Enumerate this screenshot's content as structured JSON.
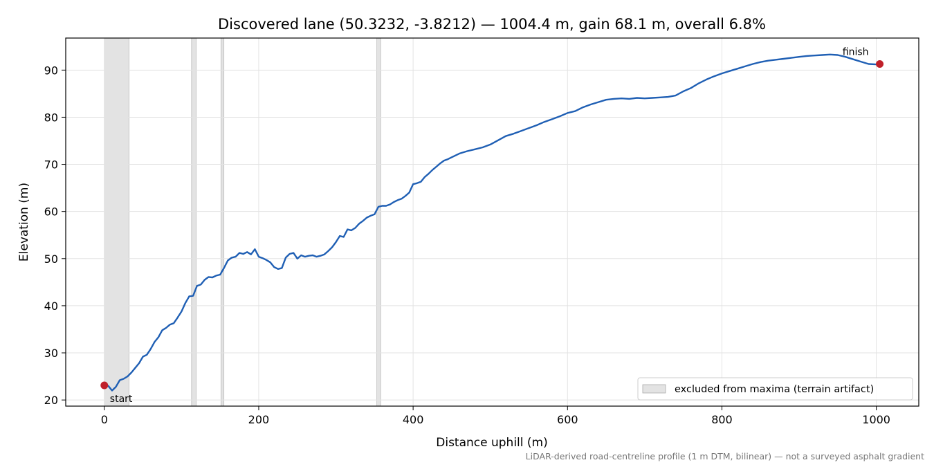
{
  "chart_data": {
    "type": "line",
    "title": "Discovered lane (50.3232, -3.8212) — 1004.4 m, gain 68.1 m, overall 6.8%",
    "xlabel": "Distance uphill (m)",
    "ylabel": "Elevation (m)",
    "xlim": [
      -50,
      1055
    ],
    "ylim": [
      18.7,
      96.8
    ],
    "xticks": [
      0,
      200,
      400,
      600,
      800,
      1000
    ],
    "yticks": [
      20,
      30,
      40,
      50,
      60,
      70,
      80,
      90
    ],
    "grid": true,
    "legend_position": "lower-right",
    "line_color": "#1f5fb4",
    "marker_color": "#c0202a",
    "band_color": "#cccccc",
    "caption": "LiDAR-derived road-centreline profile (1 m DTM, bilinear) — not a surveyed asphalt gradient",
    "series": [
      {
        "x": [
          0,
          5,
          10,
          15,
          20,
          25,
          30,
          35,
          40,
          45,
          50,
          55,
          60,
          65,
          70,
          75,
          80,
          85,
          90,
          95,
          100,
          105,
          110,
          115,
          120,
          125,
          130,
          135,
          140,
          145,
          150,
          155,
          160,
          165,
          170,
          175,
          180,
          185,
          190,
          195,
          200,
          205,
          210,
          215,
          220,
          225,
          230,
          235,
          240,
          245,
          250,
          255,
          260,
          265,
          270,
          275,
          280,
          285,
          290,
          295,
          300,
          305,
          310,
          315,
          320,
          325,
          330,
          335,
          340,
          345,
          350,
          355,
          360,
          365,
          370,
          375,
          380,
          385,
          390,
          395,
          400,
          405,
          410,
          415,
          420,
          425,
          430,
          435,
          440,
          445,
          450,
          460,
          470,
          480,
          490,
          500,
          510,
          520,
          530,
          540,
          550,
          560,
          570,
          580,
          590,
          600,
          610,
          620,
          630,
          640,
          650,
          660,
          670,
          680,
          690,
          700,
          710,
          720,
          730,
          740,
          750,
          760,
          770,
          780,
          790,
          800,
          810,
          820,
          830,
          840,
          850,
          860,
          870,
          880,
          890,
          900,
          910,
          920,
          930,
          940,
          950,
          960,
          970,
          980,
          990,
          1000,
          1004.4
        ],
        "y": [
          23.1,
          23.0,
          22.0,
          22.8,
          24.2,
          24.5,
          25.0,
          25.8,
          26.8,
          27.8,
          29.2,
          29.6,
          30.8,
          32.3,
          33.3,
          34.8,
          35.3,
          36.0,
          36.3,
          37.5,
          38.8,
          40.6,
          42.0,
          42.1,
          44.2,
          44.5,
          45.5,
          46.1,
          46.0,
          46.4,
          46.6,
          48.0,
          49.6,
          50.2,
          50.4,
          51.2,
          51.0,
          51.4,
          50.9,
          52.0,
          50.4,
          50.1,
          49.7,
          49.2,
          48.2,
          47.8,
          48.0,
          50.2,
          51.0,
          51.2,
          50.0,
          50.7,
          50.4,
          50.6,
          50.7,
          50.4,
          50.6,
          50.9,
          51.6,
          52.4,
          53.5,
          54.8,
          54.6,
          56.2,
          56.0,
          56.5,
          57.4,
          58.0,
          58.7,
          59.1,
          59.4,
          61.0,
          61.2,
          61.2,
          61.5,
          62.0,
          62.4,
          62.7,
          63.3,
          64.0,
          65.8,
          66.0,
          66.3,
          67.3,
          68.0,
          68.8,
          69.5,
          70.2,
          70.8,
          71.1,
          71.5,
          72.3,
          72.8,
          73.2,
          73.6,
          74.2,
          75.1,
          76.0,
          76.5,
          77.1,
          77.7,
          78.3,
          79.0,
          79.6,
          80.2,
          80.9,
          81.3,
          82.1,
          82.7,
          83.2,
          83.7,
          83.9,
          84.0,
          83.9,
          84.1,
          84.0,
          84.1,
          84.2,
          84.3,
          84.6,
          85.5,
          86.2,
          87.2,
          88.0,
          88.7,
          89.3,
          89.8,
          90.3,
          90.8,
          91.3,
          91.7,
          92.0,
          92.2,
          92.4,
          92.6,
          92.8,
          93.0,
          93.1,
          93.2,
          93.3,
          93.2,
          92.8,
          92.3,
          91.8,
          91.3,
          91.2,
          91.3
        ]
      }
    ],
    "excluded_bands": [
      [
        0,
        32
      ],
      [
        113,
        119
      ],
      [
        151,
        155
      ],
      [
        353,
        358
      ]
    ],
    "markers": [
      {
        "label": "start",
        "x": 0,
        "y": 23.1
      },
      {
        "label": "finish",
        "x": 1004.4,
        "y": 91.3
      }
    ],
    "legend_entries": [
      {
        "label": "excluded from maxima (terrain artifact)"
      }
    ]
  }
}
